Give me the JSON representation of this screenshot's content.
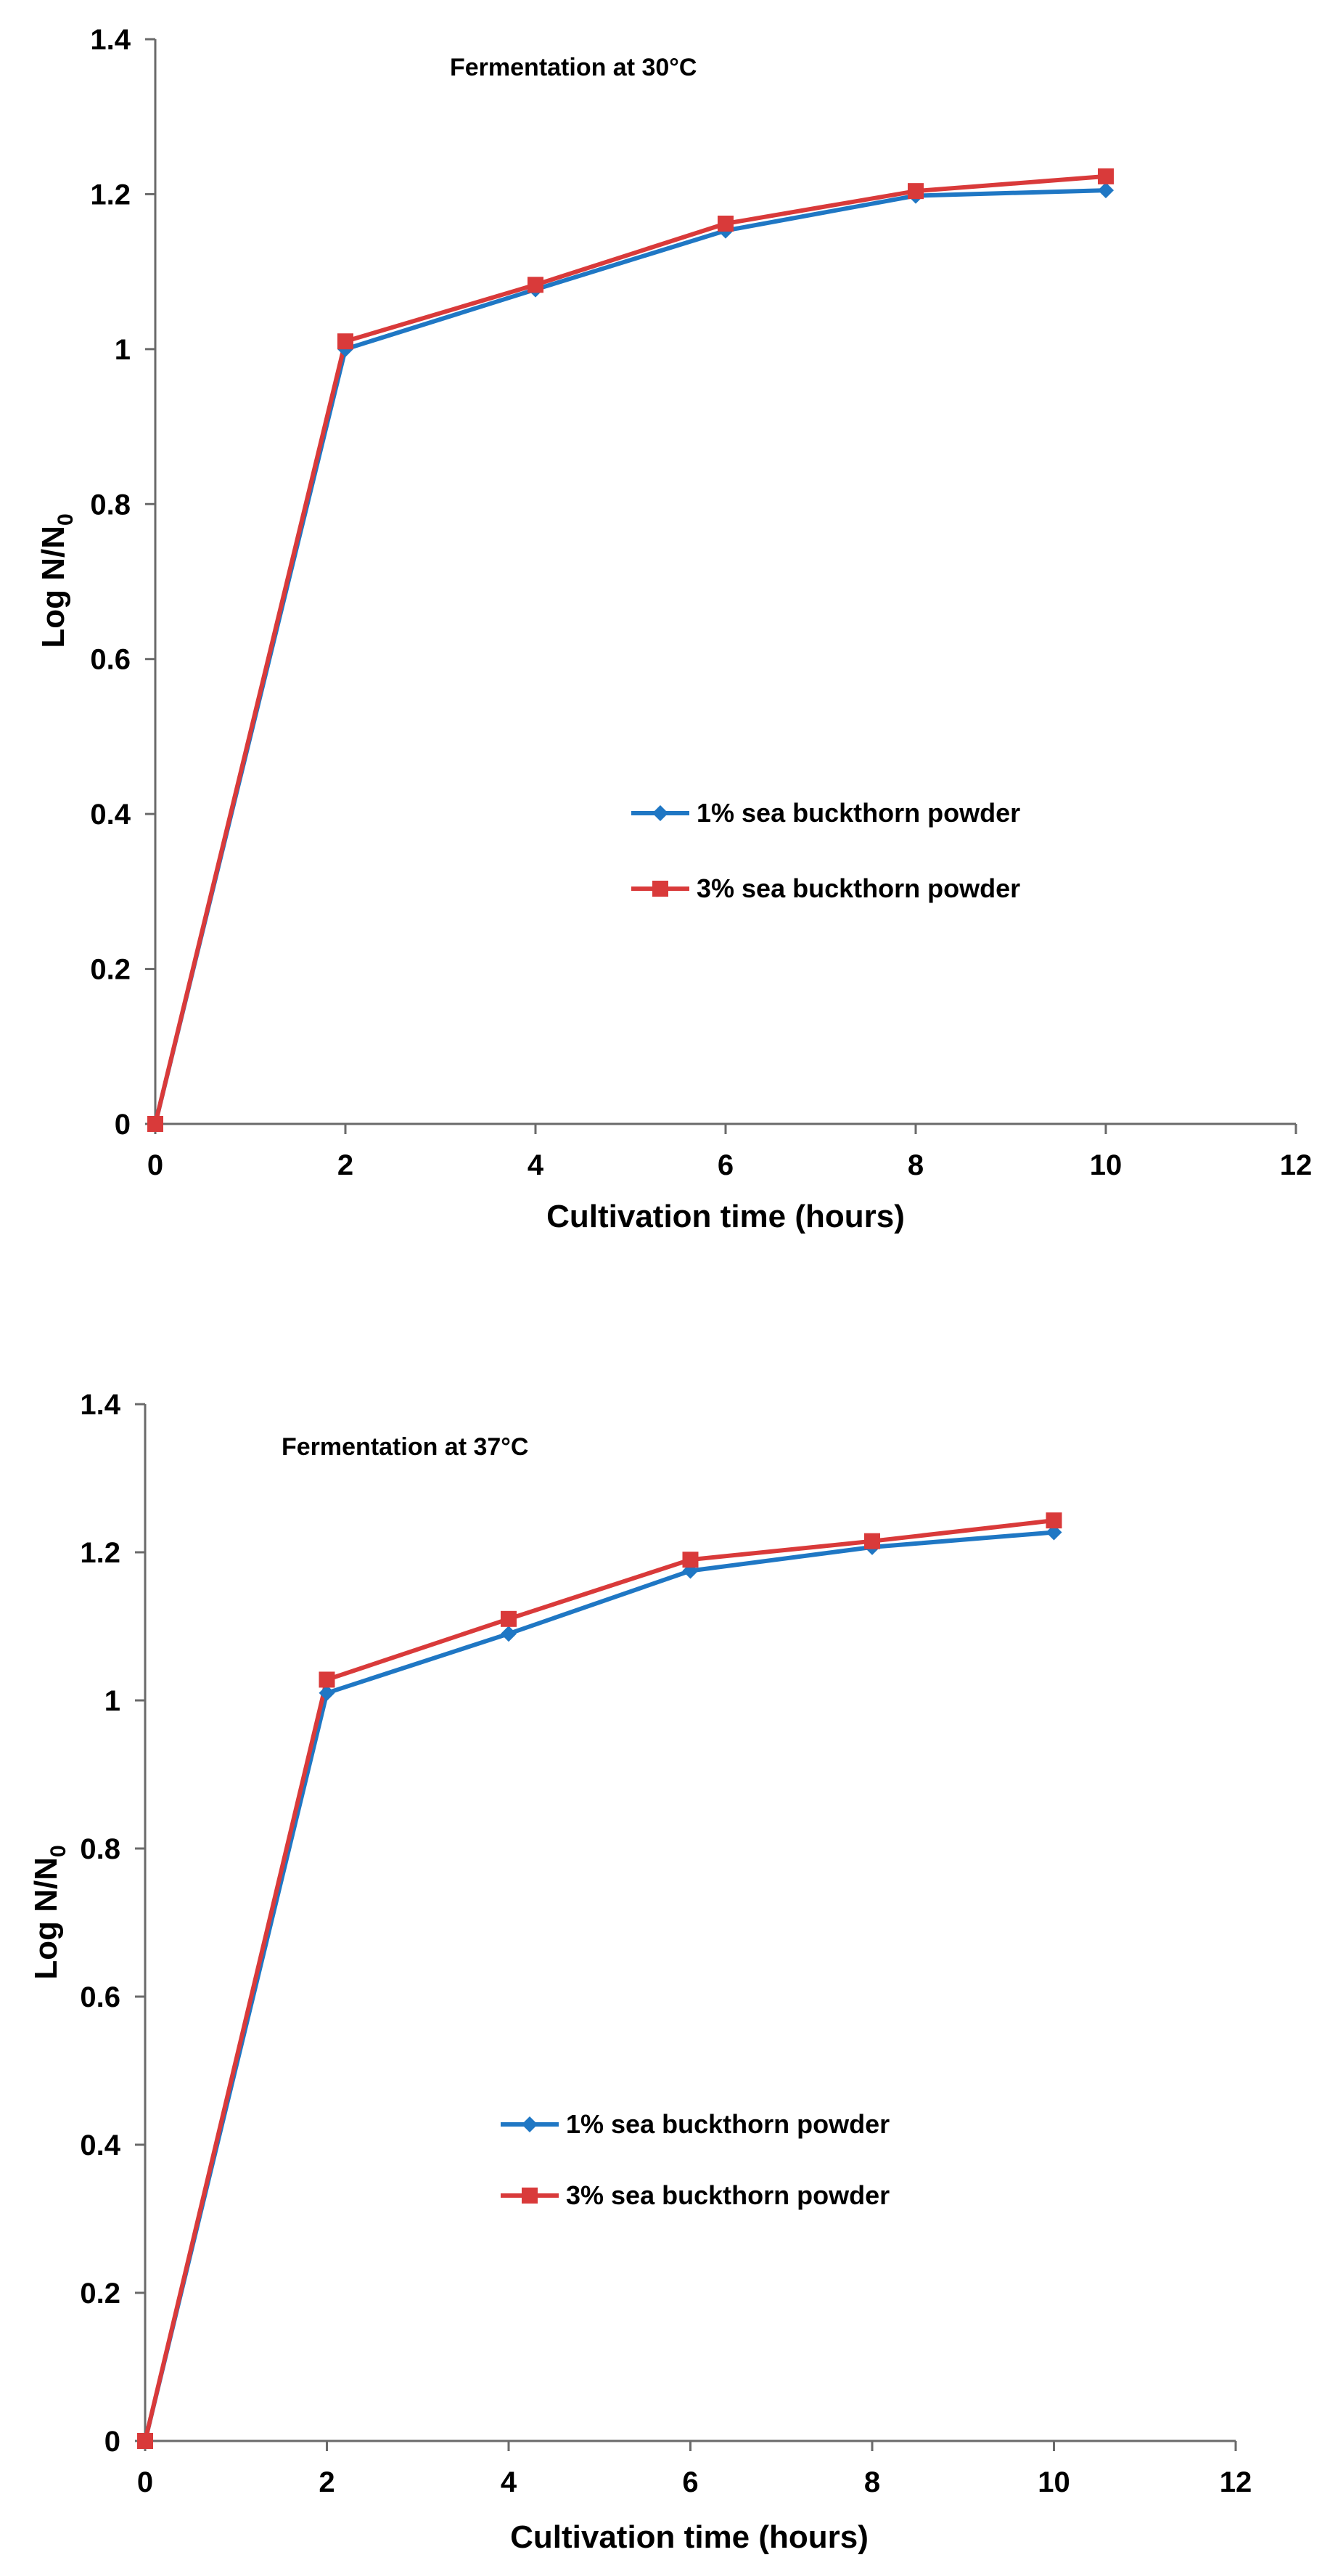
{
  "chart_data": [
    {
      "type": "line",
      "annotation": "Fermentation at 30°C",
      "xlabel": "Cultivation time (hours)",
      "ylabel_main": "Log N/N",
      "ylabel_sub": "0",
      "xlim": [
        0,
        12
      ],
      "ylim": [
        0,
        1.4
      ],
      "xticks": [
        0,
        2,
        4,
        6,
        8,
        10,
        12
      ],
      "yticks": [
        0,
        0.2,
        0.4,
        0.6,
        0.8,
        1,
        1.2,
        1.4
      ],
      "x": [
        0,
        2,
        4,
        6,
        8,
        10
      ],
      "grid": false,
      "series": [
        {
          "name": "1% sea buckthorn powder",
          "color": "#1f77c4",
          "marker": "diamond",
          "values": [
            0,
            1.0,
            1.077,
            1.153,
            1.198,
            1.205
          ]
        },
        {
          "name": "3% sea buckthorn powder",
          "color": "#d93a3a",
          "marker": "square",
          "values": [
            0,
            1.01,
            1.083,
            1.162,
            1.204,
            1.223
          ]
        }
      ]
    },
    {
      "type": "line",
      "annotation": "Fermentation at 37°C",
      "xlabel": "Cultivation time (hours)",
      "ylabel_main": "Log N/N",
      "ylabel_sub": "0",
      "xlim": [
        0,
        12
      ],
      "ylim": [
        0,
        1.4
      ],
      "xticks": [
        0,
        2,
        4,
        6,
        8,
        10,
        12
      ],
      "yticks": [
        0,
        0.2,
        0.4,
        0.6,
        0.8,
        1,
        1.2,
        1.4
      ],
      "x": [
        0,
        2,
        4,
        6,
        8,
        10
      ],
      "grid": false,
      "series": [
        {
          "name": "1% sea buckthorn powder",
          "color": "#1f77c4",
          "marker": "diamond",
          "values": [
            0,
            1.01,
            1.09,
            1.175,
            1.207,
            1.227
          ]
        },
        {
          "name": "3% sea buckthorn powder",
          "color": "#d93a3a",
          "marker": "square",
          "values": [
            0,
            1.028,
            1.11,
            1.19,
            1.215,
            1.243
          ]
        }
      ]
    }
  ]
}
